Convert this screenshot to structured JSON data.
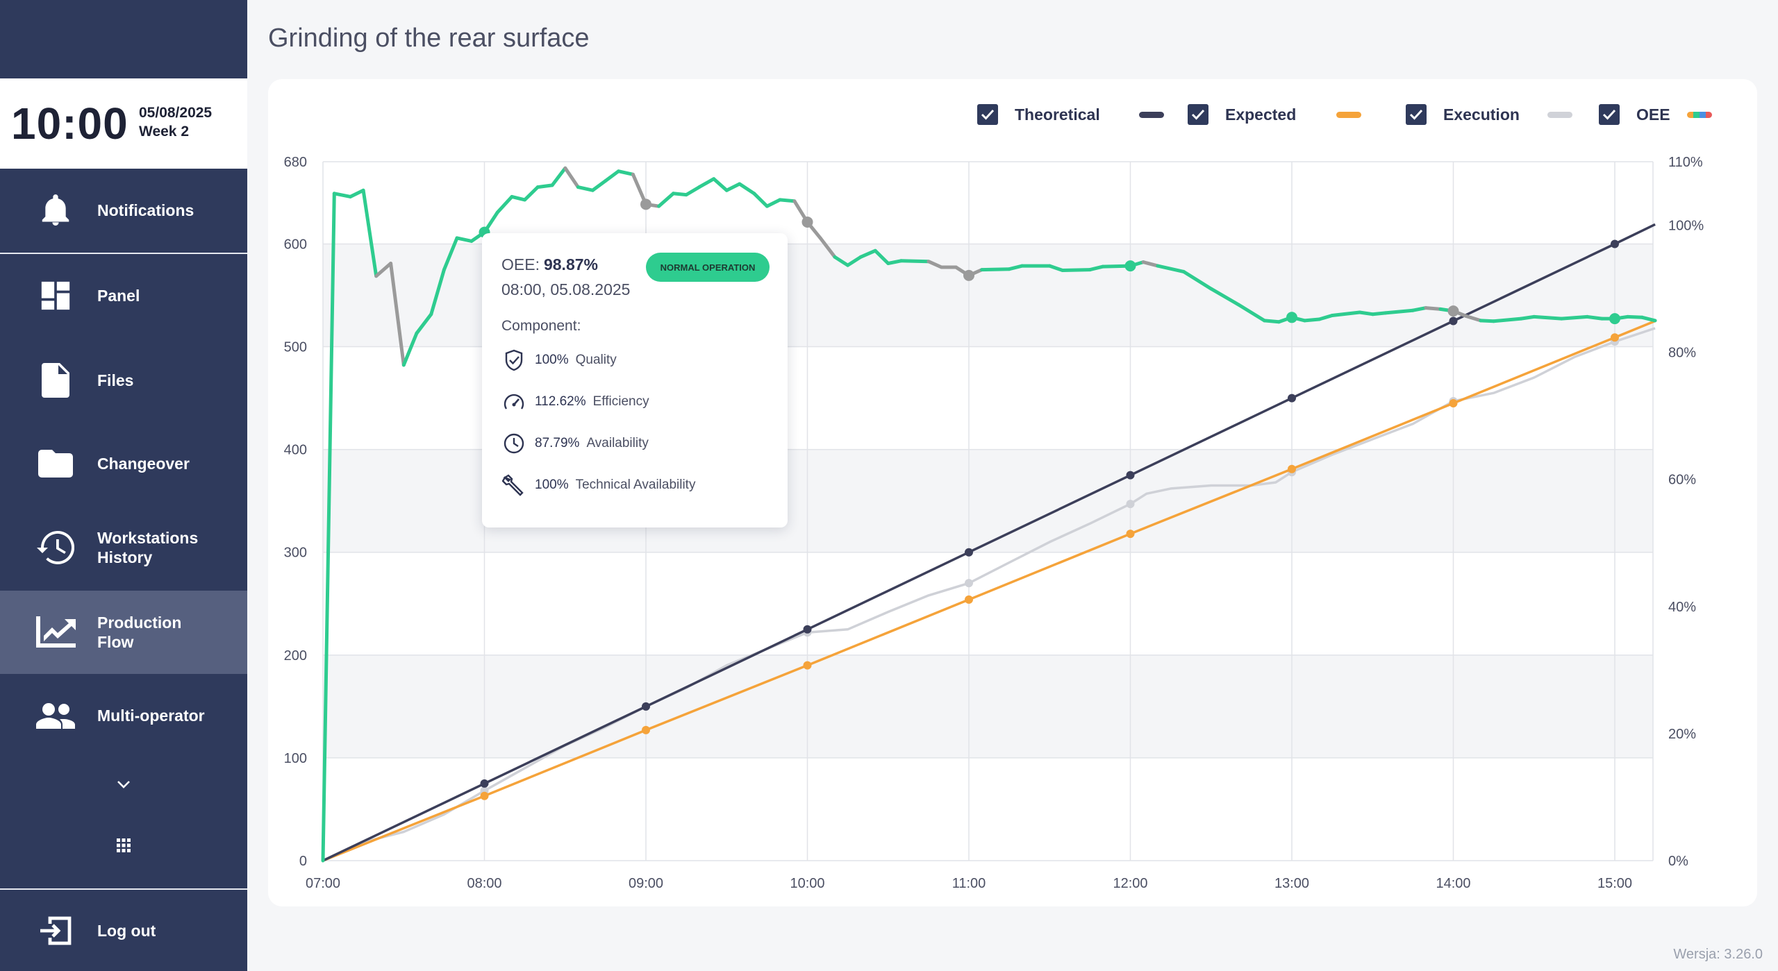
{
  "sidebar": {
    "time": "10:00",
    "date": "05/08/2025",
    "week": "Week 2",
    "items": [
      {
        "label": "Notifications",
        "icon": "bell-icon"
      },
      {
        "label": "Panel",
        "icon": "dashboard-icon"
      },
      {
        "label": "Files",
        "icon": "file-icon"
      },
      {
        "label": "Changeover",
        "icon": "folder-icon"
      },
      {
        "label": "Workstations History",
        "icon": "history-icon"
      },
      {
        "label": "Production Flow",
        "icon": "chart-icon",
        "active": true
      },
      {
        "label": "Multi-operator",
        "icon": "users-icon"
      }
    ],
    "logout_label": "Log out"
  },
  "page": {
    "title": "Grinding of the rear surface",
    "version": "Wersja: 3.26.0"
  },
  "legend": [
    {
      "label": "Theoretical",
      "checked": true,
      "color": "#3c3f5a"
    },
    {
      "label": "Expected",
      "checked": true,
      "color": "#f5a33a"
    },
    {
      "label": "Execution",
      "checked": true,
      "color": "#d0d2d8"
    },
    {
      "label": "OEE",
      "checked": true,
      "color": "multicolor"
    }
  ],
  "tooltip": {
    "oee_label": "OEE:",
    "oee_value": "98.87%",
    "datetime": "08:00, 05.08.2025",
    "badge": "NORMAL OPERATION",
    "component_label": "Component:",
    "rows": [
      {
        "icon": "shield-check-icon",
        "value": "100%",
        "label": "Quality"
      },
      {
        "icon": "speedometer-icon",
        "value": "112.62%",
        "label": "Efficiency"
      },
      {
        "icon": "clock-icon",
        "value": "87.79%",
        "label": "Availability"
      },
      {
        "icon": "wrench-icon",
        "value": "100%",
        "label": "Technical Availability"
      }
    ]
  },
  "chart_data": {
    "type": "line",
    "x_ticks": [
      "07:00",
      "08:00",
      "09:00",
      "10:00",
      "11:00",
      "12:00",
      "13:00",
      "14:00",
      "15:00"
    ],
    "x_range": [
      7.0,
      15.25
    ],
    "y_left_ticks": [
      0,
      100,
      200,
      300,
      400,
      500,
      600,
      680
    ],
    "y_left_range": [
      0,
      680
    ],
    "y_right_ticks": [
      "0%",
      "20%",
      "40%",
      "60%",
      "80%",
      "100%",
      "110%"
    ],
    "y_right_range": [
      0,
      110
    ],
    "grid": true,
    "colors": {
      "theoretical": "#3c3f5a",
      "expected": "#f5a33a",
      "execution": "#cfd1d7",
      "oee_normal": "#2ecc8f",
      "oee_other": "#9a9a9a"
    },
    "series": [
      {
        "name": "Theoretical",
        "axis": "left",
        "points": [
          [
            7,
            0
          ],
          [
            8,
            75
          ],
          [
            9,
            150
          ],
          [
            10,
            225
          ],
          [
            11,
            300
          ],
          [
            12,
            375
          ],
          [
            13,
            450
          ],
          [
            14,
            525
          ],
          [
            15,
            600
          ],
          [
            15.25,
            619
          ]
        ],
        "markers": [
          8,
          9,
          10,
          11,
          12,
          13,
          14,
          15
        ]
      },
      {
        "name": "Expected",
        "axis": "left",
        "points": [
          [
            7,
            0
          ],
          [
            8,
            63
          ],
          [
            9,
            127
          ],
          [
            10,
            190
          ],
          [
            11,
            254
          ],
          [
            12,
            318
          ],
          [
            13,
            381
          ],
          [
            14,
            445
          ],
          [
            15,
            509
          ],
          [
            15.25,
            525
          ]
        ],
        "markers": [
          8,
          9,
          10,
          11,
          12,
          13,
          14,
          15
        ]
      },
      {
        "name": "Execution",
        "axis": "left",
        "points": [
          [
            7,
            0
          ],
          [
            7.3,
            20
          ],
          [
            7.5,
            28
          ],
          [
            7.75,
            45
          ],
          [
            8,
            68
          ],
          [
            8.25,
            90
          ],
          [
            8.5,
            112
          ],
          [
            8.75,
            130
          ],
          [
            9,
            150
          ],
          [
            9.25,
            168
          ],
          [
            9.5,
            190
          ],
          [
            9.75,
            206
          ],
          [
            10,
            222
          ],
          [
            10.25,
            225
          ],
          [
            10.5,
            242
          ],
          [
            10.75,
            258
          ],
          [
            11,
            270
          ],
          [
            11.25,
            290
          ],
          [
            11.5,
            310
          ],
          [
            11.75,
            328
          ],
          [
            12,
            347
          ],
          [
            12.1,
            357
          ],
          [
            12.25,
            362
          ],
          [
            12.5,
            365
          ],
          [
            12.75,
            365
          ],
          [
            12.9,
            368
          ],
          [
            13,
            378
          ],
          [
            13.25,
            395
          ],
          [
            13.5,
            410
          ],
          [
            13.75,
            425
          ],
          [
            14,
            447
          ],
          [
            14.25,
            455
          ],
          [
            14.5,
            470
          ],
          [
            14.75,
            490
          ],
          [
            15,
            505
          ],
          [
            15.25,
            518
          ]
        ],
        "markers": [
          8,
          9,
          10,
          11,
          12,
          13,
          14,
          15
        ]
      },
      {
        "name": "OEE",
        "axis": "right",
        "points": [
          [
            7,
            0
          ],
          [
            7.07,
            105
          ],
          [
            7.17,
            104.5
          ],
          [
            7.25,
            105.5
          ],
          [
            7.33,
            92
          ],
          [
            7.42,
            94
          ],
          [
            7.5,
            78
          ],
          [
            7.58,
            83
          ],
          [
            7.67,
            86
          ],
          [
            7.75,
            93
          ],
          [
            7.83,
            98
          ],
          [
            7.92,
            97.5
          ],
          [
            8,
            98.9
          ],
          [
            8.08,
            102
          ],
          [
            8.17,
            104.5
          ],
          [
            8.25,
            104
          ],
          [
            8.33,
            106
          ],
          [
            8.42,
            106.3
          ],
          [
            8.5,
            109
          ],
          [
            8.58,
            106
          ],
          [
            8.67,
            105.5
          ],
          [
            8.75,
            107
          ],
          [
            8.83,
            108.5
          ],
          [
            8.92,
            108
          ],
          [
            9,
            103.3
          ],
          [
            9.08,
            103
          ],
          [
            9.17,
            105
          ],
          [
            9.25,
            104.8
          ],
          [
            9.33,
            106
          ],
          [
            9.42,
            107.3
          ],
          [
            9.5,
            105.5
          ],
          [
            9.58,
            106.5
          ],
          [
            9.67,
            105
          ],
          [
            9.75,
            103
          ],
          [
            9.83,
            104
          ],
          [
            9.92,
            103.8
          ],
          [
            10,
            100.5
          ],
          [
            10.08,
            98
          ],
          [
            10.17,
            95
          ],
          [
            10.25,
            93.7
          ],
          [
            10.33,
            95
          ],
          [
            10.42,
            96
          ],
          [
            10.5,
            94
          ],
          [
            10.58,
            94.4
          ],
          [
            10.75,
            94.3
          ],
          [
            10.83,
            93.4
          ],
          [
            10.92,
            93.4
          ],
          [
            11,
            92.1
          ],
          [
            11.08,
            93
          ],
          [
            11.25,
            93.1
          ],
          [
            11.33,
            93.6
          ],
          [
            11.5,
            93.6
          ],
          [
            11.58,
            92.9
          ],
          [
            11.75,
            93
          ],
          [
            11.83,
            93.5
          ],
          [
            12,
            93.6
          ],
          [
            12.08,
            94.2
          ],
          [
            12.17,
            93.6
          ],
          [
            12.33,
            92.7
          ],
          [
            12.5,
            90
          ],
          [
            12.67,
            87.5
          ],
          [
            12.83,
            85
          ],
          [
            12.92,
            84.8
          ],
          [
            13,
            85.5
          ],
          [
            13.08,
            85
          ],
          [
            13.17,
            85.2
          ],
          [
            13.25,
            85.8
          ],
          [
            13.42,
            86.3
          ],
          [
            13.5,
            86
          ],
          [
            13.58,
            86.2
          ],
          [
            13.75,
            86.6
          ],
          [
            13.83,
            87
          ],
          [
            13.92,
            86.8
          ],
          [
            14,
            86.5
          ],
          [
            14.08,
            85.7
          ],
          [
            14.17,
            85
          ],
          [
            14.25,
            84.9
          ],
          [
            14.42,
            85.3
          ],
          [
            14.5,
            85.6
          ],
          [
            14.67,
            85.3
          ],
          [
            14.83,
            85.6
          ],
          [
            14.92,
            85.3
          ],
          [
            15,
            85.3
          ],
          [
            15.08,
            85.6
          ],
          [
            15.17,
            85.5
          ],
          [
            15.25,
            85
          ]
        ],
        "markers": [
          8,
          9,
          10,
          11,
          12,
          13,
          14,
          15
        ]
      }
    ]
  }
}
